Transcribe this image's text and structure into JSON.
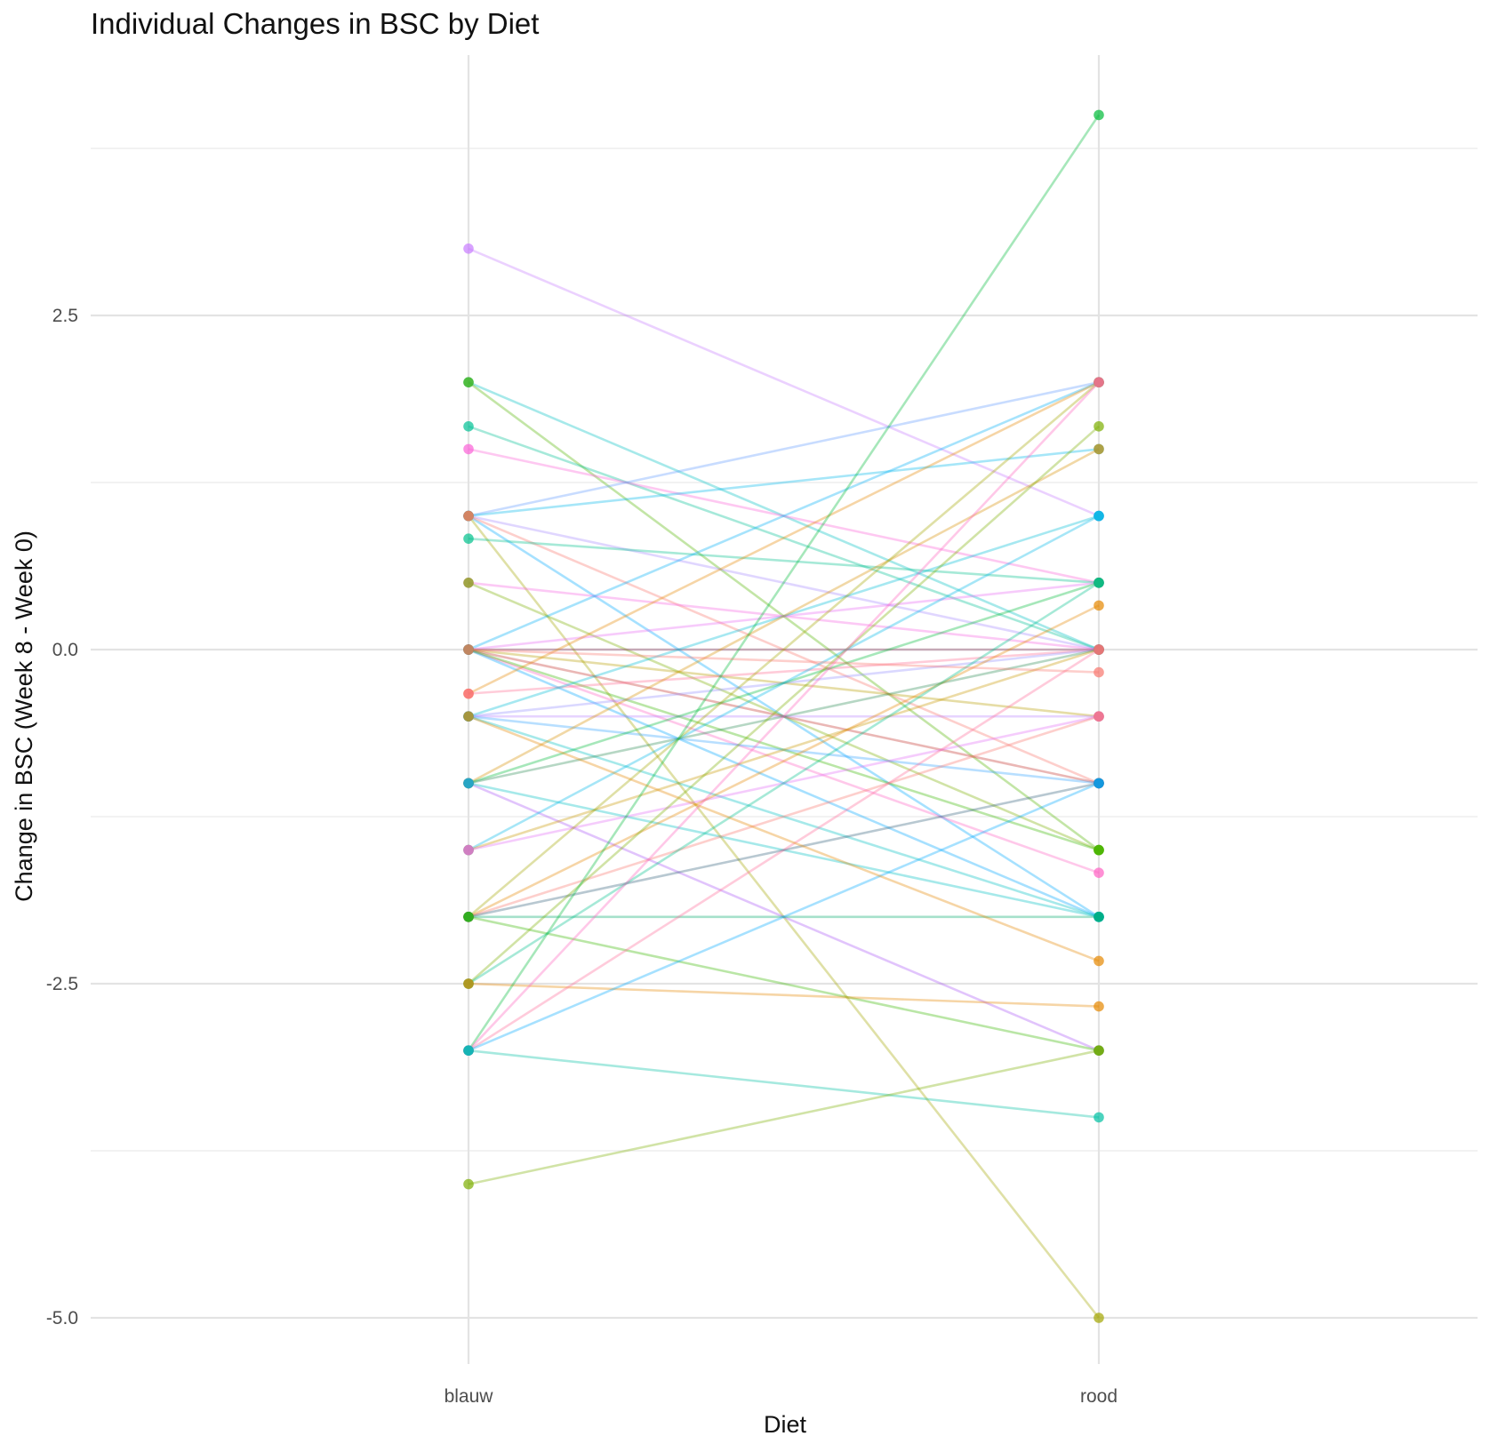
{
  "chart_data": {
    "type": "line",
    "title": "Individual Changes in BSC by Diet",
    "xlabel": "Diet",
    "ylabel": "Change in BSC (Week 8 - Week 0)",
    "categories": [
      "blauw",
      "rood"
    ],
    "ylim": [
      -5.35,
      4.5
    ],
    "y_ticks": [
      2.5,
      0.0,
      -2.5,
      -5.0
    ],
    "y_tick_labels": [
      "2.5",
      "0.0",
      "-2.5",
      "-5.0"
    ],
    "grid": true,
    "legend": "none",
    "line_opacity": 0.35,
    "subjects": [
      {
        "blauw": 3.0,
        "rood": 1.0,
        "color": "#c77cff"
      },
      {
        "blauw": 2.0,
        "rood": 0.0,
        "color": "#00bfc4"
      },
      {
        "blauw": 2.0,
        "rood": -1.5,
        "color": "#53b400"
      },
      {
        "blauw": 1.67,
        "rood": 0.0,
        "color": "#00c094"
      },
      {
        "blauw": 1.5,
        "rood": 0.5,
        "color": "#fb61d7"
      },
      {
        "blauw": 1.0,
        "rood": 2.0,
        "color": "#619cff"
      },
      {
        "blauw": 1.0,
        "rood": 1.5,
        "color": "#00b6eb"
      },
      {
        "blauw": 1.0,
        "rood": 0.0,
        "color": "#a58aff"
      },
      {
        "blauw": 1.0,
        "rood": -2.0,
        "color": "#00a9ff"
      },
      {
        "blauw": 1.0,
        "rood": -5.0,
        "color": "#a3a500"
      },
      {
        "blauw": 1.0,
        "rood": -1.0,
        "color": "#f8766d"
      },
      {
        "blauw": 0.83,
        "rood": 0.5,
        "color": "#00c08b"
      },
      {
        "blauw": 0.5,
        "rood": 0.0,
        "color": "#f564e3"
      },
      {
        "blauw": 0.5,
        "rood": -1.5,
        "color": "#7cae00"
      },
      {
        "blauw": 0.0,
        "rood": 2.0,
        "color": "#00b0f6"
      },
      {
        "blauw": 0.0,
        "rood": 0.5,
        "color": "#e76bf3"
      },
      {
        "blauw": 0.0,
        "rood": 0.0,
        "color": "#8b3a62"
      },
      {
        "blauw": 0.0,
        "rood": -0.5,
        "color": "#b79f00"
      },
      {
        "blauw": 0.0,
        "rood": -1.0,
        "color": "#c4302b"
      },
      {
        "blauw": 0.0,
        "rood": -1.67,
        "color": "#ff61c3"
      },
      {
        "blauw": 0.0,
        "rood": -2.0,
        "color": "#00a5ff"
      },
      {
        "blauw": 0.0,
        "rood": -1.5,
        "color": "#39b600"
      },
      {
        "blauw": -0.33,
        "rood": 2.0,
        "color": "#e58700"
      },
      {
        "blauw": -0.33,
        "rood": 0.0,
        "color": "#ff6c91"
      },
      {
        "blauw": -0.5,
        "rood": 0.0,
        "color": "#9590ff"
      },
      {
        "blauw": -0.5,
        "rood": -0.5,
        "color": "#b983ff"
      },
      {
        "blauw": -0.5,
        "rood": 1.0,
        "color": "#00bcd8"
      },
      {
        "blauw": -0.5,
        "rood": -1.0,
        "color": "#35a2ff"
      },
      {
        "blauw": -0.5,
        "rood": -2.0,
        "color": "#00bfc4"
      },
      {
        "blauw": -1.0,
        "rood": 1.5,
        "color": "#d89000"
      },
      {
        "blauw": -1.0,
        "rood": 0.5,
        "color": "#00ba38"
      },
      {
        "blauw": -1.0,
        "rood": 0.0,
        "color": "#2e8b57"
      },
      {
        "blauw": -1.0,
        "rood": -3.0,
        "color": "#a855f7"
      },
      {
        "blauw": -1.0,
        "rood": -2.0,
        "color": "#00bfc4"
      },
      {
        "blauw": -1.5,
        "rood": 1.0,
        "color": "#00b8e7"
      },
      {
        "blauw": -1.5,
        "rood": 0.0,
        "color": "#c99800"
      },
      {
        "blauw": -1.5,
        "rood": -0.5,
        "color": "#e36ef6"
      },
      {
        "blauw": -2.0,
        "rood": 2.0,
        "color": "#a3a500"
      },
      {
        "blauw": -2.0,
        "rood": 0.33,
        "color": "#e58700"
      },
      {
        "blauw": -2.0,
        "rood": -0.5,
        "color": "#f8766d"
      },
      {
        "blauw": -2.0,
        "rood": -1.0,
        "color": "#35627a"
      },
      {
        "blauw": -2.0,
        "rood": -2.0,
        "color": "#00a86b"
      },
      {
        "blauw": -2.0,
        "rood": -3.0,
        "color": "#39b600"
      },
      {
        "blauw": -2.5,
        "rood": 1.67,
        "color": "#7cae00"
      },
      {
        "blauw": -2.5,
        "rood": 0.5,
        "color": "#00c08b"
      },
      {
        "blauw": -2.5,
        "rood": -2.67,
        "color": "#e58700"
      },
      {
        "blauw": -3.0,
        "rood": 4.0,
        "color": "#00ba38"
      },
      {
        "blauw": -3.0,
        "rood": 2.0,
        "color": "#ff62bc"
      },
      {
        "blauw": -3.0,
        "rood": 0.0,
        "color": "#ff6a98"
      },
      {
        "blauw": -3.0,
        "rood": -1.0,
        "color": "#00a9ff"
      },
      {
        "blauw": -3.0,
        "rood": -3.5,
        "color": "#00c1a3"
      },
      {
        "blauw": -4.0,
        "rood": -3.0,
        "color": "#7cae00"
      },
      {
        "blauw": 0.0,
        "rood": -0.17,
        "color": "#f8766d"
      },
      {
        "blauw": -0.5,
        "rood": -2.33,
        "color": "#e58700"
      }
    ]
  }
}
